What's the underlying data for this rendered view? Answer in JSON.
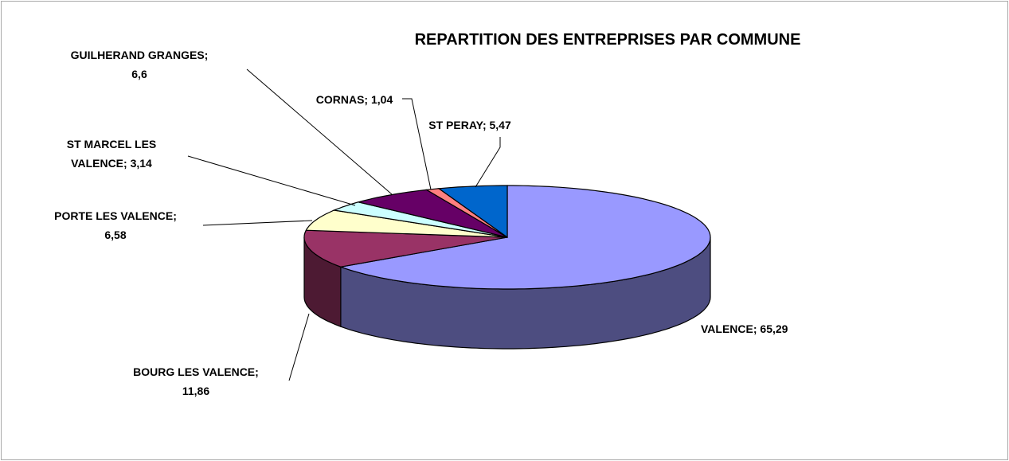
{
  "chart_data": {
    "type": "pie3d",
    "title": "REPARTITION DES ENTREPRISES PAR COMMUNE",
    "values": [
      65.29,
      11.86,
      6.58,
      3.14,
      6.6,
      1.04,
      5.47
    ],
    "value_labels": [
      "VALENCE; 65,29",
      "BOURG LES VALENCE;\n11,86",
      "PORTE LES VALENCE;\n6,58",
      "ST MARCEL LES\nVALENCE; 3,14",
      "GUILHERAND GRANGES;\n6,6",
      "CORNAS; 1,04",
      "ST PERAY; 5,47"
    ],
    "colors": [
      "#9999ff",
      "#993366",
      "#ffffcc",
      "#ccffff",
      "#660066",
      "#ff8080",
      "#0066cc"
    ]
  }
}
